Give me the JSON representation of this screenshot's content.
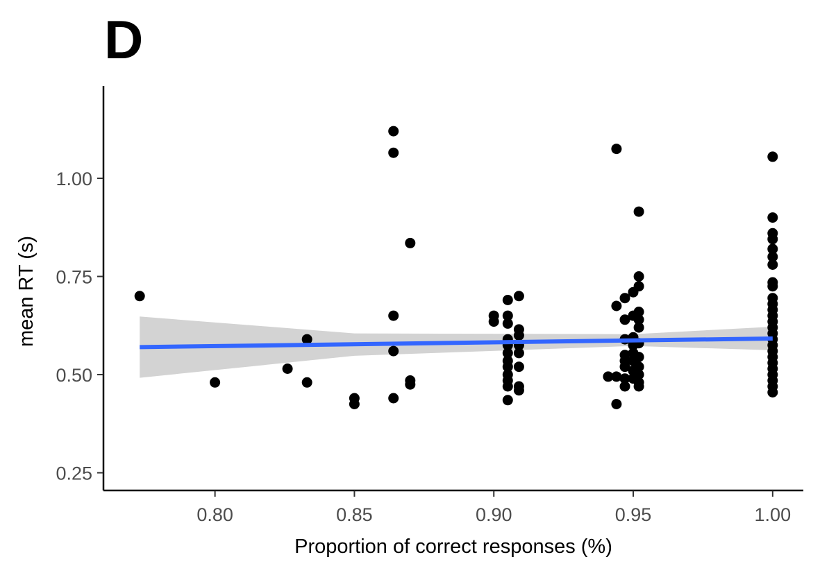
{
  "panel_label": "D",
  "chart_data": {
    "type": "scatter",
    "xlabel": "Proportion of correct responses (%)",
    "ylabel": "mean RT (s)",
    "xlim": [
      0.76,
      1.011
    ],
    "ylim": [
      0.205,
      1.235
    ],
    "x_ticks": [
      0.8,
      0.85,
      0.9,
      0.95,
      1.0
    ],
    "x_tick_labels": [
      "0.80",
      "0.85",
      "0.90",
      "0.95",
      "1.00"
    ],
    "y_ticks": [
      0.25,
      0.5,
      0.75,
      1.0
    ],
    "y_tick_labels": [
      "0.25",
      "0.50",
      "0.75",
      "1.00"
    ],
    "grid": false,
    "point_color": "#000000",
    "fit_line_color": "#3366ff",
    "ribbon_color": "#d3d3d3",
    "points": [
      [
        0.773,
        0.7
      ],
      [
        0.8,
        0.48
      ],
      [
        0.826,
        0.515
      ],
      [
        0.833,
        0.59
      ],
      [
        0.833,
        0.48
      ],
      [
        0.85,
        0.44
      ],
      [
        0.85,
        0.425
      ],
      [
        0.864,
        1.12
      ],
      [
        0.864,
        1.065
      ],
      [
        0.864,
        0.65
      ],
      [
        0.864,
        0.56
      ],
      [
        0.864,
        0.44
      ],
      [
        0.87,
        0.835
      ],
      [
        0.87,
        0.485
      ],
      [
        0.87,
        0.475
      ],
      [
        0.9,
        0.65
      ],
      [
        0.9,
        0.635
      ],
      [
        0.905,
        0.69
      ],
      [
        0.905,
        0.65
      ],
      [
        0.905,
        0.63
      ],
      [
        0.905,
        0.59
      ],
      [
        0.905,
        0.575
      ],
      [
        0.905,
        0.555
      ],
      [
        0.905,
        0.535
      ],
      [
        0.905,
        0.52
      ],
      [
        0.905,
        0.5
      ],
      [
        0.905,
        0.485
      ],
      [
        0.905,
        0.47
      ],
      [
        0.905,
        0.435
      ],
      [
        0.909,
        0.7
      ],
      [
        0.909,
        0.615
      ],
      [
        0.909,
        0.6
      ],
      [
        0.909,
        0.575
      ],
      [
        0.909,
        0.555
      ],
      [
        0.909,
        0.52
      ],
      [
        0.909,
        0.47
      ],
      [
        0.909,
        0.46
      ],
      [
        0.941,
        0.495
      ],
      [
        0.944,
        1.075
      ],
      [
        0.944,
        0.675
      ],
      [
        0.944,
        0.495
      ],
      [
        0.944,
        0.425
      ],
      [
        0.947,
        0.695
      ],
      [
        0.947,
        0.64
      ],
      [
        0.947,
        0.59
      ],
      [
        0.947,
        0.55
      ],
      [
        0.947,
        0.535
      ],
      [
        0.947,
        0.52
      ],
      [
        0.947,
        0.49
      ],
      [
        0.947,
        0.47
      ],
      [
        0.95,
        0.71
      ],
      [
        0.95,
        0.65
      ],
      [
        0.95,
        0.595
      ],
      [
        0.95,
        0.575
      ],
      [
        0.95,
        0.555
      ],
      [
        0.95,
        0.535
      ],
      [
        0.95,
        0.51
      ],
      [
        0.95,
        0.49
      ],
      [
        0.952,
        0.915
      ],
      [
        0.952,
        0.75
      ],
      [
        0.952,
        0.725
      ],
      [
        0.952,
        0.66
      ],
      [
        0.952,
        0.64
      ],
      [
        0.952,
        0.62
      ],
      [
        0.952,
        0.58
      ],
      [
        0.952,
        0.545
      ],
      [
        0.952,
        0.52
      ],
      [
        0.952,
        0.5
      ],
      [
        0.952,
        0.48
      ],
      [
        0.952,
        0.47
      ],
      [
        1.0,
        1.055
      ],
      [
        1.0,
        0.9
      ],
      [
        1.0,
        0.86
      ],
      [
        1.0,
        0.845
      ],
      [
        1.0,
        0.82
      ],
      [
        1.0,
        0.8
      ],
      [
        1.0,
        0.78
      ],
      [
        1.0,
        0.735
      ],
      [
        1.0,
        0.725
      ],
      [
        1.0,
        0.695
      ],
      [
        1.0,
        0.68
      ],
      [
        1.0,
        0.665
      ],
      [
        1.0,
        0.65
      ],
      [
        1.0,
        0.635
      ],
      [
        1.0,
        0.62
      ],
      [
        1.0,
        0.605
      ],
      [
        1.0,
        0.59
      ],
      [
        1.0,
        0.575
      ],
      [
        1.0,
        0.56
      ],
      [
        1.0,
        0.545
      ],
      [
        1.0,
        0.53
      ],
      [
        1.0,
        0.515
      ],
      [
        1.0,
        0.5
      ],
      [
        1.0,
        0.485
      ],
      [
        1.0,
        0.47
      ],
      [
        1.0,
        0.455
      ]
    ],
    "fit_line": {
      "x": [
        0.773,
        1.0
      ],
      "y": [
        0.57,
        0.592
      ]
    },
    "confidence_band": {
      "x": [
        0.773,
        0.85,
        0.95,
        1.0
      ],
      "upper": [
        0.648,
        0.605,
        0.603,
        0.622
      ],
      "lower": [
        0.492,
        0.548,
        0.573,
        0.562
      ]
    }
  }
}
